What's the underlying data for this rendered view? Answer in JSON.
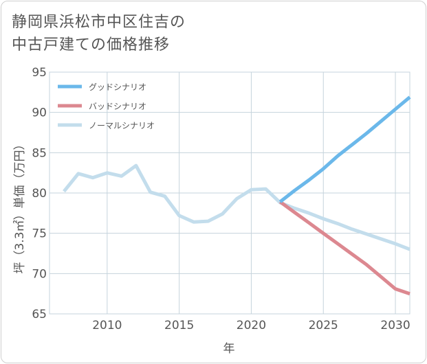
{
  "title_lines": [
    "静岡県浜松市中区住吉の",
    "中古戸建ての価格推移"
  ],
  "chart_data": {
    "type": "line",
    "xlabel": "年",
    "ylabel": "坪（3.3㎡）単価（万円）",
    "xlim": [
      2006,
      2031
    ],
    "ylim": [
      65,
      95
    ],
    "xticks": [
      2010,
      2015,
      2020,
      2025,
      2030
    ],
    "yticks": [
      65,
      70,
      75,
      80,
      85,
      90,
      95
    ],
    "grid": true,
    "legend_position": "top-left",
    "series": [
      {
        "name": "グッドシナリオ",
        "color": "#6bb8ea",
        "x": [
          2022,
          2023,
          2024,
          2025,
          2026,
          2027,
          2028,
          2029,
          2030,
          2031
        ],
        "y": [
          78.9,
          80.3,
          81.6,
          83.0,
          84.6,
          86.0,
          87.4,
          88.9,
          90.4,
          91.9
        ]
      },
      {
        "name": "バッドシナリオ",
        "color": "#dc8890",
        "x": [
          2022,
          2023,
          2024,
          2025,
          2026,
          2027,
          2028,
          2029,
          2030,
          2031
        ],
        "y": [
          78.9,
          77.6,
          76.3,
          75.0,
          73.7,
          72.4,
          71.1,
          69.6,
          68.1,
          67.5
        ]
      },
      {
        "name": "ノーマルシナリオ",
        "color": "#c3ddec",
        "x": [
          2007,
          2008,
          2009,
          2010,
          2011,
          2012,
          2013,
          2014,
          2015,
          2016,
          2017,
          2018,
          2019,
          2020,
          2021,
          2022,
          2023,
          2024,
          2025,
          2026,
          2027,
          2028,
          2029,
          2030,
          2031
        ],
        "y": [
          80.2,
          82.4,
          81.9,
          82.5,
          82.1,
          83.4,
          80.1,
          79.6,
          77.2,
          76.4,
          76.5,
          77.4,
          79.3,
          80.4,
          80.5,
          78.8,
          78.1,
          77.5,
          76.8,
          76.2,
          75.5,
          74.9,
          74.3,
          73.7,
          73.0
        ]
      }
    ]
  }
}
